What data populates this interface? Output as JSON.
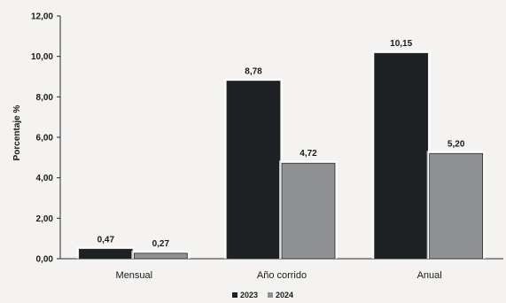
{
  "chart_data": {
    "type": "bar",
    "title": "",
    "xlabel": "",
    "ylabel": "Porcentaje %",
    "categories": [
      "Mensual",
      "Año corrido",
      "Anual"
    ],
    "series": [
      {
        "name": "2023",
        "color": "#1e2124",
        "values": [
          0.47,
          8.78,
          10.15
        ],
        "labels": [
          "0,47",
          "8,78",
          "10,15"
        ]
      },
      {
        "name": "2024",
        "color": "#8f9192",
        "values": [
          0.27,
          4.72,
          5.2
        ],
        "labels": [
          "0,27",
          "4,72",
          "5,20"
        ]
      }
    ],
    "ylim": [
      0,
      12
    ],
    "yticks": [
      0,
      2,
      4,
      6,
      8,
      10,
      12
    ],
    "ytick_labels": [
      "0,00",
      "2,00",
      "4,00",
      "6,00",
      "8,00",
      "10,00",
      "12,00"
    ],
    "grid": false,
    "legend_position": "bottom-center"
  }
}
